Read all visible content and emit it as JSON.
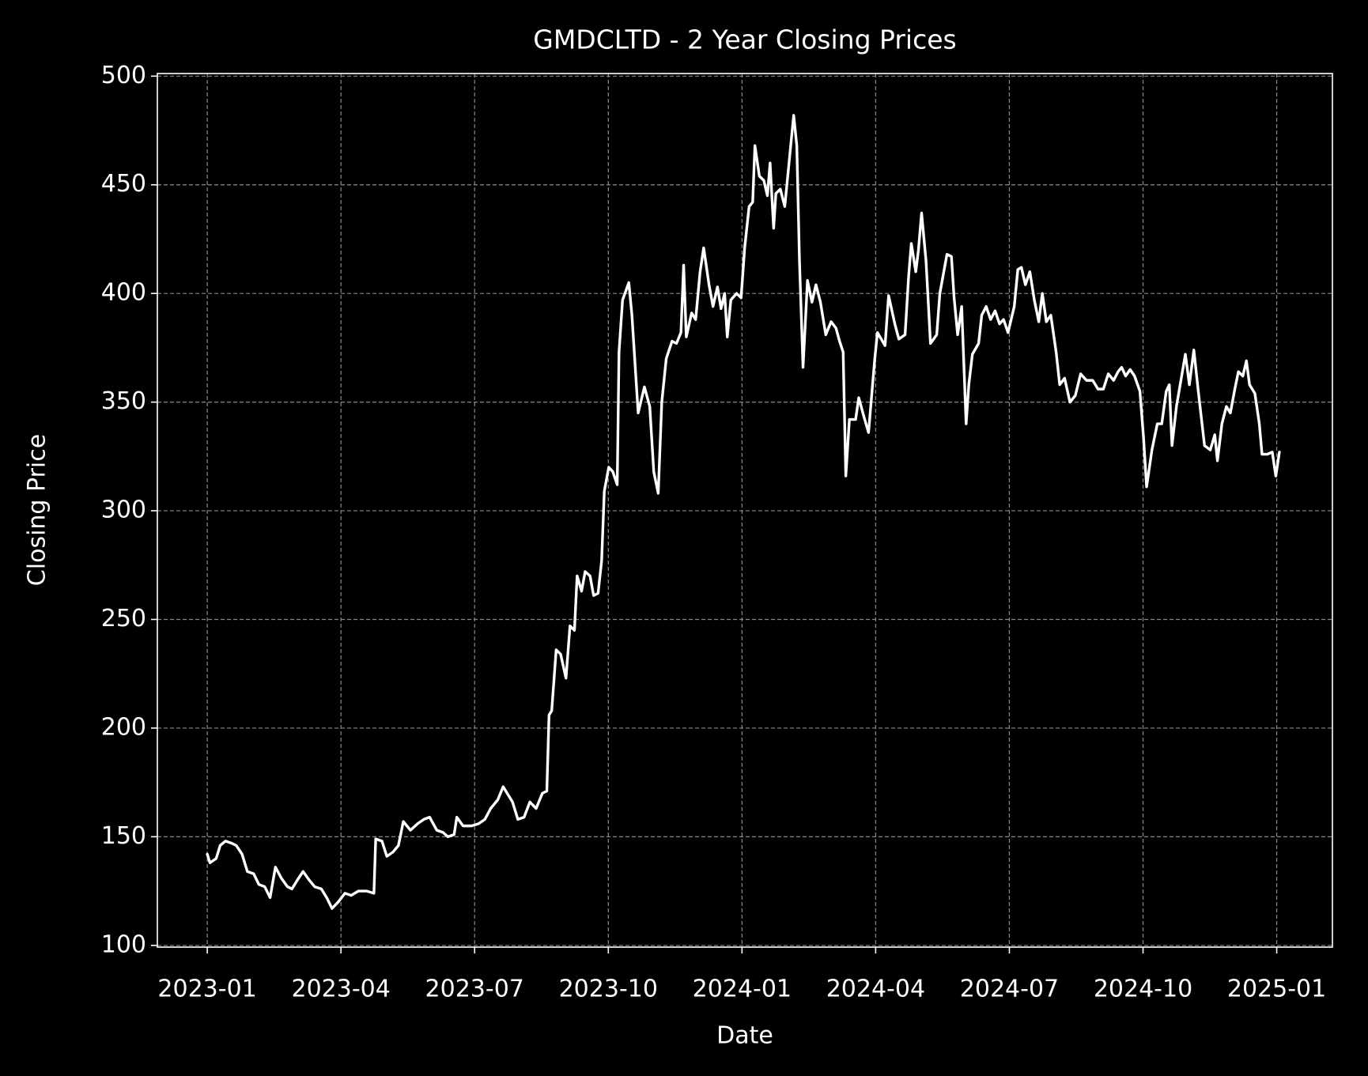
{
  "chart_data": {
    "type": "line",
    "title": "GMDCLTD - 2 Year Closing Prices",
    "xlabel": "Date",
    "ylabel": "Closing Price",
    "x": [
      0,
      0.06,
      0.2,
      0.29,
      0.41,
      0.55,
      0.65,
      0.78,
      0.9,
      1.04,
      1.16,
      1.29,
      1.41,
      1.53,
      1.66,
      1.8,
      1.9,
      2.02,
      2.15,
      2.29,
      2.41,
      2.56,
      2.68,
      2.8,
      2.94,
      3.09,
      3.23,
      3.39,
      3.58,
      3.74,
      3.78,
      3.92,
      4.03,
      4.17,
      4.29,
      4.4,
      4.56,
      4.72,
      4.86,
      4.99,
      5.15,
      5.29,
      5.4,
      5.54,
      5.6,
      5.74,
      5.93,
      6.09,
      6.23,
      6.36,
      6.52,
      6.64,
      6.73,
      6.85,
      6.97,
      7.11,
      7.24,
      7.38,
      7.52,
      7.62,
      7.67,
      7.73,
      7.83,
      7.93,
      8.05,
      8.14,
      8.24,
      8.3,
      8.4,
      8.48,
      8.59,
      8.67,
      8.77,
      8.85,
      8.91,
      9.01,
      9.1,
      9.2,
      9.24,
      9.32,
      9.46,
      9.53,
      9.67,
      9.81,
      9.93,
      10.02,
      10.12,
      10.2,
      10.3,
      10.43,
      10.53,
      10.63,
      10.69,
      10.75,
      10.87,
      10.96,
      11.06,
      11.14,
      11.26,
      11.35,
      11.45,
      11.53,
      11.61,
      11.67,
      11.75,
      11.88,
      11.98,
      12.06,
      12.16,
      12.24,
      12.29,
      12.39,
      12.49,
      12.57,
      12.63,
      12.71,
      12.76,
      12.86,
      12.96,
      13.06,
      13.16,
      13.23,
      13.29,
      13.37,
      13.47,
      13.57,
      13.66,
      13.76,
      13.88,
      14.0,
      14.11,
      14.19,
      14.27,
      14.33,
      14.41,
      14.55,
      14.62,
      14.74,
      14.84,
      14.98,
      15.04,
      15.21,
      15.29,
      15.43,
      15.52,
      15.66,
      15.74,
      15.8,
      15.9,
      15.96,
      16.03,
      16.13,
      16.23,
      16.37,
      16.44,
      16.6,
      16.7,
      16.76,
      16.84,
      16.93,
      17.03,
      17.09,
      17.17,
      17.31,
      17.38,
      17.48,
      17.58,
      17.68,
      17.78,
      17.87,
      17.97,
      18.11,
      18.19,
      18.27,
      18.36,
      18.46,
      18.56,
      18.66,
      18.74,
      18.83,
      18.93,
      19.05,
      19.13,
      19.24,
      19.36,
      19.48,
      19.6,
      19.73,
      19.87,
      19.99,
      20.11,
      20.22,
      20.34,
      20.44,
      20.52,
      20.61,
      20.71,
      20.81,
      20.93,
      21.01,
      21.08,
      21.2,
      21.32,
      21.42,
      21.52,
      21.59,
      21.65,
      21.75,
      21.85,
      21.95,
      22.04,
      22.14,
      22.24,
      22.38,
      22.51,
      22.61,
      22.67,
      22.77,
      22.87,
      22.96,
      23.06,
      23.14,
      23.24,
      23.32,
      23.39,
      23.51,
      23.61,
      23.67,
      23.79,
      23.9,
      23.98,
      24.06
    ],
    "values": [
      142,
      138,
      140,
      146,
      148,
      147,
      146,
      142,
      134,
      133,
      128,
      127,
      122,
      136,
      131,
      127,
      126,
      130,
      134,
      130,
      127,
      126,
      122,
      117,
      120,
      124,
      123,
      125,
      125,
      124,
      149,
      148,
      141,
      143,
      146,
      157,
      153,
      156,
      158,
      159,
      153,
      152,
      150,
      151,
      159,
      155,
      155,
      156,
      158,
      163,
      167,
      173,
      170,
      166,
      158,
      159,
      166,
      163,
      170,
      171,
      206,
      208,
      236,
      234,
      223,
      247,
      245,
      270,
      263,
      272,
      270,
      261,
      262,
      277,
      309,
      320,
      318,
      312,
      373,
      397,
      405,
      390,
      345,
      357,
      348,
      318,
      308,
      350,
      370,
      378,
      377,
      382,
      413,
      380,
      391,
      388,
      410,
      421,
      404,
      394,
      403,
      393,
      400,
      380,
      397,
      400,
      398,
      421,
      440,
      442,
      468,
      454,
      452,
      445,
      460,
      430,
      446,
      448,
      440,
      461,
      482,
      468,
      415,
      366,
      406,
      396,
      404,
      396,
      381,
      387,
      384,
      378,
      373,
      316,
      342,
      342,
      352,
      343,
      336,
      370,
      382,
      376,
      399,
      386,
      379,
      381,
      408,
      423,
      410,
      420,
      437,
      415,
      377,
      381,
      400,
      418,
      417,
      398,
      381,
      394,
      340,
      358,
      372,
      377,
      390,
      394,
      388,
      392,
      386,
      388,
      382,
      394,
      411,
      412,
      404,
      410,
      397,
      387,
      400,
      387,
      390,
      373,
      358,
      361,
      350,
      353,
      363,
      360,
      360,
      356,
      356,
      363,
      360,
      364,
      366,
      362,
      365,
      362,
      355,
      334,
      311,
      328,
      340,
      340,
      355,
      358,
      330,
      348,
      360,
      372,
      358,
      374,
      355,
      330,
      328,
      335,
      323,
      340,
      348,
      345,
      356,
      364,
      362,
      369,
      358,
      354,
      340,
      326,
      326,
      327,
      316,
      327
    ],
    "color": "#ffffff",
    "xlim": [
      -1.12,
      25.25
    ],
    "xticks": [
      {
        "value": 0,
        "label": "2023-01"
      },
      {
        "value": 3,
        "label": "2023-04"
      },
      {
        "value": 6,
        "label": "2023-07"
      },
      {
        "value": 9,
        "label": "2023-10"
      },
      {
        "value": 12,
        "label": "2024-01"
      },
      {
        "value": 15,
        "label": "2024-04"
      },
      {
        "value": 18,
        "label": "2024-07"
      },
      {
        "value": 21,
        "label": "2024-10"
      },
      {
        "value": 24,
        "label": "2025-01"
      }
    ],
    "ylim": [
      99.2,
      501.2
    ],
    "yticks": [
      100,
      150,
      200,
      250,
      300,
      350,
      400,
      450,
      500
    ],
    "grid": true
  }
}
